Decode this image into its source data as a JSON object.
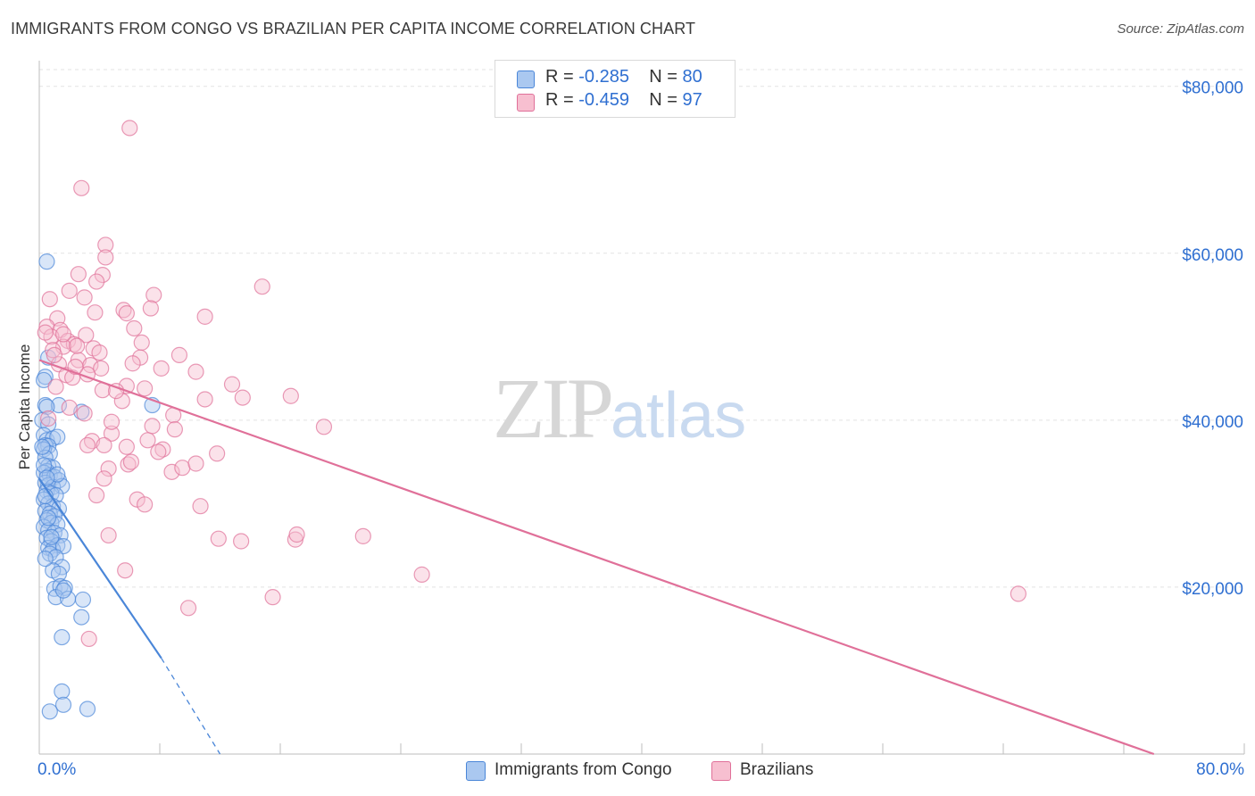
{
  "header": {
    "title": "IMMIGRANTS FROM CONGO VS BRAZILIAN PER CAPITA INCOME CORRELATION CHART",
    "source": "Source: ZipAtlas.com"
  },
  "watermark": {
    "zip": "ZIP",
    "atlas": "atlas"
  },
  "stats": {
    "rows": [
      {
        "r_label": "R = ",
        "r_value": "-0.285",
        "n_label": "N = ",
        "n_value": "80",
        "color": "#aac8f0"
      },
      {
        "r_label": "R = ",
        "r_value": "-0.459",
        "n_label": "N = ",
        "n_value": "97",
        "color": "#f7bfd0"
      }
    ]
  },
  "legend": {
    "items": [
      {
        "label": "Immigrants from Congo",
        "color": "#aac8f0"
      },
      {
        "label": "Brazilians",
        "color": "#f7bfd0"
      }
    ]
  },
  "axis": {
    "x_min_label": "0.0%",
    "x_max_label": "80.0%",
    "y_title": "Per Capita Income"
  },
  "chart_data": {
    "type": "scatter",
    "title": "IMMIGRANTS FROM CONGO VS BRAZILIAN PER CAPITA INCOME CORRELATION CHART",
    "xlabel": "",
    "ylabel": "Per Capita Income",
    "xlim": [
      0,
      80
    ],
    "ylim": [
      0,
      82000
    ],
    "y_ticks": [
      20000,
      40000,
      60000,
      80000
    ],
    "y_tick_labels": [
      "$20,000",
      "$40,000",
      "$60,000",
      "$80,000"
    ],
    "grid": true,
    "series": [
      {
        "name": "Immigrants from Congo",
        "color": "#4a86d8",
        "fill": "#aac8f0",
        "trend": {
          "x": [
            0,
            8.1
          ],
          "y": [
            33000,
            11500
          ],
          "dashed_to": [
            12,
            0
          ]
        },
        "points": [
          [
            0.5,
            59000
          ],
          [
            0.4,
            45200
          ],
          [
            0.3,
            44800
          ],
          [
            0.6,
            47500
          ],
          [
            0.4,
            41800
          ],
          [
            1.3,
            41800
          ],
          [
            0.5,
            41600
          ],
          [
            7.5,
            41800
          ],
          [
            2.8,
            41000
          ],
          [
            0.2,
            40000
          ],
          [
            0.6,
            39500
          ],
          [
            0.3,
            38200
          ],
          [
            0.5,
            37600
          ],
          [
            0.9,
            37800
          ],
          [
            1.2,
            38000
          ],
          [
            0.4,
            37000
          ],
          [
            0.6,
            36900
          ],
          [
            0.3,
            36500
          ],
          [
            0.7,
            36000
          ],
          [
            0.4,
            35500
          ],
          [
            0.6,
            34500
          ],
          [
            0.9,
            34300
          ],
          [
            0.5,
            33900
          ],
          [
            0.3,
            33700
          ],
          [
            0.7,
            33400
          ],
          [
            1.0,
            33200
          ],
          [
            1.3,
            32800
          ],
          [
            0.4,
            32500
          ],
          [
            0.6,
            32200
          ],
          [
            0.9,
            32000
          ],
          [
            1.5,
            32100
          ],
          [
            0.5,
            31500
          ],
          [
            0.8,
            31200
          ],
          [
            1.1,
            31000
          ],
          [
            0.3,
            30500
          ],
          [
            0.6,
            30000
          ],
          [
            0.9,
            29700
          ],
          [
            1.3,
            29400
          ],
          [
            0.4,
            29100
          ],
          [
            0.7,
            28800
          ],
          [
            1.0,
            28500
          ],
          [
            0.5,
            28000
          ],
          [
            0.8,
            27700
          ],
          [
            1.2,
            27500
          ],
          [
            0.3,
            27200
          ],
          [
            0.6,
            26800
          ],
          [
            1.0,
            26500
          ],
          [
            1.4,
            26200
          ],
          [
            0.5,
            25900
          ],
          [
            0.8,
            25500
          ],
          [
            1.2,
            25000
          ],
          [
            0.6,
            24700
          ],
          [
            0.9,
            24500
          ],
          [
            1.6,
            24900
          ],
          [
            0.7,
            24000
          ],
          [
            1.1,
            23600
          ],
          [
            1.5,
            22400
          ],
          [
            0.9,
            22000
          ],
          [
            1.3,
            21600
          ],
          [
            1.0,
            19800
          ],
          [
            1.4,
            20100
          ],
          [
            1.7,
            19900
          ],
          [
            1.1,
            18800
          ],
          [
            1.9,
            18600
          ],
          [
            1.6,
            19600
          ],
          [
            2.9,
            18500
          ],
          [
            2.8,
            16400
          ],
          [
            1.5,
            14000
          ],
          [
            1.5,
            7500
          ],
          [
            1.6,
            5900
          ],
          [
            0.7,
            5100
          ],
          [
            3.2,
            5400
          ],
          [
            0.3,
            34600
          ],
          [
            0.4,
            30900
          ],
          [
            0.6,
            28300
          ],
          [
            0.8,
            26000
          ],
          [
            1.2,
            33500
          ],
          [
            0.5,
            33100
          ],
          [
            0.2,
            36800
          ],
          [
            0.4,
            23400
          ]
        ]
      },
      {
        "name": "Brazilians",
        "color": "#e07099",
        "fill": "#f7bfd0",
        "trend": {
          "x": [
            0,
            74
          ],
          "y": [
            47200,
            0
          ]
        },
        "points": [
          [
            6.0,
            75000
          ],
          [
            2.8,
            67800
          ],
          [
            4.4,
            61000
          ],
          [
            4.4,
            59500
          ],
          [
            2.6,
            57500
          ],
          [
            4.2,
            57400
          ],
          [
            7.6,
            55000
          ],
          [
            14.8,
            56000
          ],
          [
            3.8,
            56600
          ],
          [
            2.0,
            55500
          ],
          [
            0.7,
            54500
          ],
          [
            3.0,
            54700
          ],
          [
            5.6,
            53200
          ],
          [
            7.4,
            53400
          ],
          [
            11.0,
            52400
          ],
          [
            5.8,
            52800
          ],
          [
            1.2,
            52200
          ],
          [
            0.5,
            51200
          ],
          [
            1.4,
            50800
          ],
          [
            6.3,
            51000
          ],
          [
            3.1,
            50200
          ],
          [
            0.8,
            50000
          ],
          [
            1.9,
            49500
          ],
          [
            2.3,
            49100
          ],
          [
            6.8,
            49300
          ],
          [
            1.6,
            48800
          ],
          [
            3.6,
            48600
          ],
          [
            0.9,
            48400
          ],
          [
            4.0,
            48100
          ],
          [
            9.3,
            47800
          ],
          [
            6.7,
            47500
          ],
          [
            2.6,
            47200
          ],
          [
            1.3,
            46700
          ],
          [
            3.4,
            46600
          ],
          [
            4.1,
            46200
          ],
          [
            6.2,
            46800
          ],
          [
            1.8,
            45400
          ],
          [
            2.2,
            45100
          ],
          [
            3.2,
            45500
          ],
          [
            10.4,
            45800
          ],
          [
            12.8,
            44300
          ],
          [
            5.8,
            44100
          ],
          [
            7.0,
            43800
          ],
          [
            4.2,
            43600
          ],
          [
            16.7,
            42900
          ],
          [
            11.0,
            42500
          ],
          [
            13.5,
            42700
          ],
          [
            5.5,
            42300
          ],
          [
            3.0,
            40800
          ],
          [
            8.9,
            40600
          ],
          [
            7.5,
            39300
          ],
          [
            18.9,
            39200
          ],
          [
            9.0,
            38900
          ],
          [
            4.8,
            38400
          ],
          [
            3.5,
            37500
          ],
          [
            4.3,
            37000
          ],
          [
            7.2,
            37600
          ],
          [
            3.2,
            37000
          ],
          [
            5.8,
            36800
          ],
          [
            8.2,
            36500
          ],
          [
            7.9,
            36200
          ],
          [
            11.8,
            36000
          ],
          [
            4.6,
            34200
          ],
          [
            5.9,
            34700
          ],
          [
            8.8,
            33800
          ],
          [
            9.5,
            34300
          ],
          [
            10.4,
            34800
          ],
          [
            4.3,
            33000
          ],
          [
            6.5,
            30500
          ],
          [
            7.0,
            29900
          ],
          [
            10.7,
            29700
          ],
          [
            3.8,
            31000
          ],
          [
            4.6,
            26200
          ],
          [
            11.9,
            25800
          ],
          [
            13.4,
            25500
          ],
          [
            17.0,
            25700
          ],
          [
            17.1,
            26300
          ],
          [
            21.5,
            26100
          ],
          [
            5.7,
            22000
          ],
          [
            25.4,
            21500
          ],
          [
            15.5,
            18800
          ],
          [
            9.9,
            17500
          ],
          [
            3.3,
            13800
          ],
          [
            65.0,
            19200
          ],
          [
            1.0,
            47800
          ],
          [
            2.5,
            48900
          ],
          [
            3.7,
            52900
          ],
          [
            0.4,
            50500
          ],
          [
            1.1,
            44000
          ],
          [
            2.0,
            41500
          ],
          [
            4.8,
            39800
          ],
          [
            6.1,
            35000
          ],
          [
            0.6,
            40200
          ],
          [
            2.4,
            46400
          ],
          [
            5.1,
            43500
          ],
          [
            8.1,
            46200
          ],
          [
            1.6,
            50300
          ]
        ]
      }
    ]
  }
}
